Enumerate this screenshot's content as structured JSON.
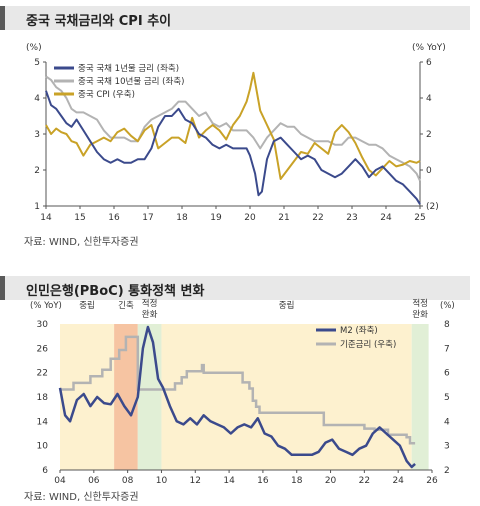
{
  "chart_data": [
    {
      "type": "line",
      "title": "중국 국채금리와 CPI 추이",
      "source": "자료: WIND, 신한투자증권",
      "left_unit": "(%)",
      "right_unit": "(% YoY)",
      "x_ticks": [
        "14",
        "15",
        "16",
        "17",
        "18",
        "19",
        "20",
        "21",
        "22",
        "23",
        "24",
        "25"
      ],
      "y_left": {
        "min": 1,
        "max": 5,
        "ticks": [
          "1",
          "2",
          "3",
          "4",
          "5"
        ]
      },
      "y_right": {
        "min": -2,
        "max": 6,
        "ticks": [
          "(2)",
          "0",
          "2",
          "4",
          "6"
        ]
      },
      "legend": [
        "중국 국채 1년물 금리 (좌축)",
        "중국 국채 10년물 금리 (좌축)",
        "중국 CPI (우축)"
      ],
      "colors": {
        "y1": "#3b4a8c",
        "y10": "#b3b3b3",
        "cpi": "#c9a227"
      },
      "series": [
        {
          "name": "중국 국채 1년물 금리 (좌축)",
          "axis": "left",
          "x": [
            14.0,
            14.15,
            14.3,
            14.45,
            14.6,
            14.75,
            14.9,
            15.1,
            15.3,
            15.5,
            15.7,
            15.9,
            16.1,
            16.3,
            16.5,
            16.7,
            16.9,
            17.1,
            17.3,
            17.5,
            17.7,
            17.9,
            18.1,
            18.3,
            18.5,
            18.7,
            18.9,
            19.1,
            19.3,
            19.5,
            19.7,
            19.9,
            20.0,
            20.15,
            20.25,
            20.35,
            20.5,
            20.7,
            20.9,
            21.1,
            21.3,
            21.5,
            21.7,
            21.9,
            22.1,
            22.3,
            22.5,
            22.7,
            22.9,
            23.1,
            23.3,
            23.5,
            23.7,
            23.9,
            24.1,
            24.3,
            24.5,
            24.7,
            24.9,
            25.0
          ],
          "values": [
            4.2,
            3.8,
            3.7,
            3.5,
            3.3,
            3.2,
            3.4,
            3.1,
            2.8,
            2.5,
            2.3,
            2.2,
            2.3,
            2.2,
            2.2,
            2.3,
            2.3,
            2.6,
            3.2,
            3.5,
            3.5,
            3.7,
            3.4,
            3.3,
            3.0,
            2.9,
            2.7,
            2.6,
            2.7,
            2.6,
            2.6,
            2.6,
            2.4,
            1.9,
            1.3,
            1.4,
            2.3,
            2.8,
            2.9,
            2.7,
            2.5,
            2.3,
            2.4,
            2.3,
            2.0,
            1.9,
            1.8,
            1.9,
            2.1,
            2.3,
            2.1,
            1.8,
            2.0,
            2.1,
            1.9,
            1.7,
            1.6,
            1.4,
            1.2,
            1.05
          ]
        },
        {
          "name": "중국 국채 10년물 금리 (좌축)",
          "axis": "left",
          "x": [
            14.0,
            14.15,
            14.3,
            14.45,
            14.6,
            14.75,
            14.9,
            15.1,
            15.3,
            15.5,
            15.7,
            15.9,
            16.1,
            16.3,
            16.5,
            16.7,
            16.9,
            17.1,
            17.3,
            17.5,
            17.7,
            17.9,
            18.1,
            18.3,
            18.5,
            18.7,
            18.9,
            19.1,
            19.3,
            19.5,
            19.7,
            19.9,
            20.1,
            20.3,
            20.5,
            20.7,
            20.9,
            21.1,
            21.3,
            21.5,
            21.7,
            21.9,
            22.1,
            22.3,
            22.5,
            22.7,
            22.9,
            23.1,
            23.3,
            23.5,
            23.7,
            23.9,
            24.1,
            24.3,
            24.5,
            24.7,
            24.9,
            25.0
          ],
          "values": [
            4.6,
            4.5,
            4.3,
            4.2,
            4.0,
            3.7,
            3.6,
            3.6,
            3.5,
            3.4,
            3.1,
            2.9,
            2.9,
            2.9,
            2.8,
            2.8,
            3.2,
            3.4,
            3.5,
            3.6,
            3.7,
            3.9,
            3.9,
            3.7,
            3.5,
            3.6,
            3.3,
            3.2,
            3.3,
            3.1,
            3.1,
            3.1,
            2.9,
            2.6,
            2.9,
            3.1,
            3.3,
            3.2,
            3.2,
            3.0,
            2.9,
            2.8,
            2.8,
            2.8,
            2.7,
            2.7,
            2.9,
            2.9,
            2.8,
            2.7,
            2.7,
            2.6,
            2.4,
            2.3,
            2.2,
            2.1,
            1.9,
            1.7
          ]
        },
        {
          "name": "중국 CPI (우축)",
          "axis": "right",
          "x": [
            14.0,
            14.15,
            14.3,
            14.45,
            14.6,
            14.75,
            14.9,
            15.1,
            15.3,
            15.5,
            15.7,
            15.9,
            16.1,
            16.3,
            16.5,
            16.7,
            16.9,
            17.1,
            17.3,
            17.5,
            17.7,
            17.9,
            18.1,
            18.3,
            18.5,
            18.7,
            18.9,
            19.1,
            19.3,
            19.5,
            19.7,
            19.9,
            20.0,
            20.1,
            20.3,
            20.5,
            20.7,
            20.9,
            21.1,
            21.3,
            21.5,
            21.7,
            21.9,
            22.1,
            22.3,
            22.5,
            22.7,
            22.9,
            23.1,
            23.3,
            23.5,
            23.7,
            23.9,
            24.1,
            24.3,
            24.5,
            24.7,
            24.9,
            25.0
          ],
          "values": [
            2.5,
            2.0,
            2.3,
            2.1,
            2.0,
            1.6,
            1.5,
            0.8,
            1.4,
            1.6,
            1.8,
            1.6,
            2.1,
            2.3,
            1.9,
            1.6,
            2.2,
            2.5,
            1.2,
            1.5,
            1.8,
            1.8,
            1.5,
            2.9,
            1.8,
            2.2,
            2.5,
            2.2,
            1.7,
            2.5,
            3.0,
            3.8,
            4.5,
            5.4,
            3.3,
            2.5,
            1.7,
            -0.5,
            0.0,
            0.5,
            1.0,
            0.9,
            1.5,
            1.2,
            0.9,
            2.1,
            2.5,
            2.1,
            1.5,
            0.7,
            0.0,
            -0.3,
            0.1,
            0.5,
            0.2,
            0.3,
            0.5,
            0.4,
            0.5
          ]
        }
      ]
    },
    {
      "type": "line",
      "title": "인민은행(PBoC) 통화정책 변화",
      "source": "자료: WIND, 신한투자증권",
      "left_unit": "(% YoY)",
      "right_unit": "(%)",
      "x_ticks": [
        "04",
        "06",
        "08",
        "10",
        "12",
        "14",
        "16",
        "18",
        "20",
        "22",
        "24",
        "26"
      ],
      "y_left": {
        "min": 6,
        "max": 30,
        "ticks": [
          "6",
          "10",
          "14",
          "18",
          "22",
          "26",
          "30"
        ]
      },
      "y_right": {
        "min": 2,
        "max": 8,
        "ticks": [
          "2",
          "3",
          "4",
          "5",
          "6",
          "7",
          "8"
        ]
      },
      "regimes": [
        {
          "label": "중립",
          "from": 4.0,
          "to": 7.2,
          "color": "#fdf1cf"
        },
        {
          "label": "긴축",
          "from": 7.2,
          "to": 8.6,
          "color": "#f6c4a2"
        },
        {
          "label": "적정\n완화",
          "from": 8.6,
          "to": 10.0,
          "color": "#e1efd6"
        },
        {
          "label": "중립",
          "from": 10.0,
          "to": 24.8,
          "color": "#fdf1cf"
        },
        {
          "label": "적정\n완화",
          "from": 24.8,
          "to": 25.8,
          "color": "#e1efd6"
        }
      ],
      "legend": [
        "M2 (좌축)",
        "기준금리 (우축)"
      ],
      "colors": {
        "m2": "#3b4a8c",
        "rate": "#b3b3b3"
      },
      "series": [
        {
          "name": "M2 (좌축)",
          "axis": "left",
          "x": [
            4.0,
            4.3,
            4.6,
            5.0,
            5.4,
            5.8,
            6.2,
            6.6,
            7.0,
            7.4,
            7.8,
            8.2,
            8.6,
            8.9,
            9.2,
            9.5,
            9.8,
            10.1,
            10.5,
            10.9,
            11.3,
            11.7,
            12.1,
            12.5,
            12.9,
            13.3,
            13.7,
            14.1,
            14.5,
            14.9,
            15.3,
            15.7,
            16.1,
            16.5,
            16.9,
            17.3,
            17.7,
            18.1,
            18.5,
            18.9,
            19.3,
            19.7,
            20.1,
            20.5,
            20.9,
            21.3,
            21.7,
            22.1,
            22.5,
            22.9,
            23.3,
            23.7,
            24.1,
            24.5,
            24.8,
            25.0
          ],
          "values": [
            19.5,
            15.0,
            14.0,
            17.5,
            18.5,
            16.5,
            18.0,
            17.0,
            16.8,
            18.5,
            16.5,
            15.0,
            18.0,
            26.0,
            29.5,
            27.0,
            21.0,
            19.5,
            16.5,
            14.0,
            13.5,
            14.5,
            13.5,
            15.0,
            14.0,
            13.5,
            13.0,
            12.0,
            13.0,
            13.5,
            13.0,
            14.5,
            12.0,
            11.5,
            10.0,
            9.5,
            8.5,
            8.5,
            8.5,
            8.5,
            9.0,
            10.5,
            11.0,
            9.5,
            9.0,
            8.5,
            9.5,
            10.0,
            12.0,
            13.0,
            12.0,
            11.0,
            10.0,
            7.5,
            6.5,
            7.0
          ]
        },
        {
          "name": "기준금리 (우축)",
          "axis": "right",
          "x": [
            4.0,
            4.8,
            4.8,
            5.8,
            5.8,
            6.5,
            6.5,
            7.0,
            7.0,
            7.5,
            7.5,
            7.9,
            7.9,
            8.6,
            8.6,
            8.8,
            8.8,
            10.8,
            10.8,
            11.2,
            11.2,
            11.5,
            11.5,
            12.4,
            12.4,
            12.5,
            12.5,
            14.8,
            14.8,
            15.2,
            15.2,
            15.4,
            15.4,
            15.6,
            15.6,
            15.8,
            15.8,
            19.6,
            19.6,
            20.0,
            20.0,
            22.0,
            22.0,
            22.6,
            22.6,
            23.4,
            23.4,
            24.5,
            24.5,
            24.7,
            24.7,
            25.0
          ],
          "values": [
            5.31,
            5.31,
            5.58,
            5.58,
            5.85,
            5.85,
            6.12,
            6.12,
            6.57,
            6.57,
            6.93,
            6.93,
            7.47,
            7.47,
            5.31,
            5.31,
            5.31,
            5.31,
            5.56,
            5.56,
            5.81,
            5.81,
            6.06,
            6.06,
            6.31,
            6.31,
            6.0,
            6.0,
            5.6,
            5.6,
            5.35,
            5.35,
            4.85,
            4.85,
            4.6,
            4.6,
            4.35,
            4.35,
            3.85,
            3.85,
            3.85,
            3.85,
            3.7,
            3.7,
            3.65,
            3.65,
            3.45,
            3.45,
            3.35,
            3.35,
            3.1,
            3.1
          ]
        }
      ]
    }
  ]
}
